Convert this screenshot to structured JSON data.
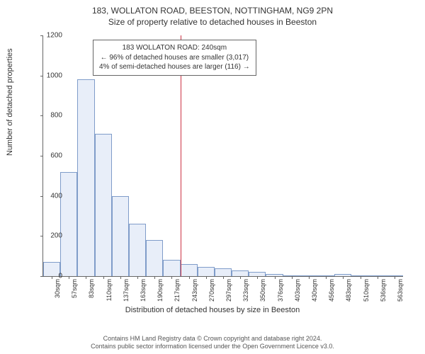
{
  "titles": {
    "main": "183, WOLLATON ROAD, BEESTON, NOTTINGHAM, NG9 2PN",
    "sub": "Size of property relative to detached houses in Beeston"
  },
  "axes": {
    "y_label": "Number of detached properties",
    "x_label": "Distribution of detached houses by size in Beeston",
    "y_max": 1200,
    "y_ticks": [
      0,
      200,
      400,
      600,
      800,
      1000,
      1200
    ],
    "x_ticks": [
      "30sqm",
      "57sqm",
      "83sqm",
      "110sqm",
      "137sqm",
      "163sqm",
      "190sqm",
      "217sqm",
      "243sqm",
      "270sqm",
      "297sqm",
      "323sqm",
      "350sqm",
      "376sqm",
      "403sqm",
      "430sqm",
      "456sqm",
      "483sqm",
      "510sqm",
      "536sqm",
      "563sqm"
    ]
  },
  "histogram": {
    "bar_fill": "#e8eef9",
    "bar_stroke": "#7f9cc9",
    "bar_count": 21,
    "values": [
      70,
      520,
      980,
      710,
      400,
      260,
      180,
      80,
      60,
      45,
      40,
      30,
      22,
      10,
      5,
      5,
      5,
      10,
      2,
      2,
      2
    ]
  },
  "marker": {
    "position_index": 8,
    "color": "#cc3344",
    "box": {
      "line1": "183 WOLLATON ROAD: 240sqm",
      "line2": "← 96% of detached houses are smaller (3,017)",
      "line3": "4% of semi-detached houses are larger (116) →"
    }
  },
  "footer": {
    "line1": "Contains HM Land Registry data © Crown copyright and database right 2024.",
    "line2": "Contains public sector information licensed under the Open Government Licence v3.0."
  },
  "style": {
    "background": "#ffffff",
    "axis_color": "#666666",
    "text_color": "#333333",
    "title_fontsize": 12,
    "label_fontsize": 11,
    "tick_fontsize": 10,
    "footer_fontsize": 9
  }
}
